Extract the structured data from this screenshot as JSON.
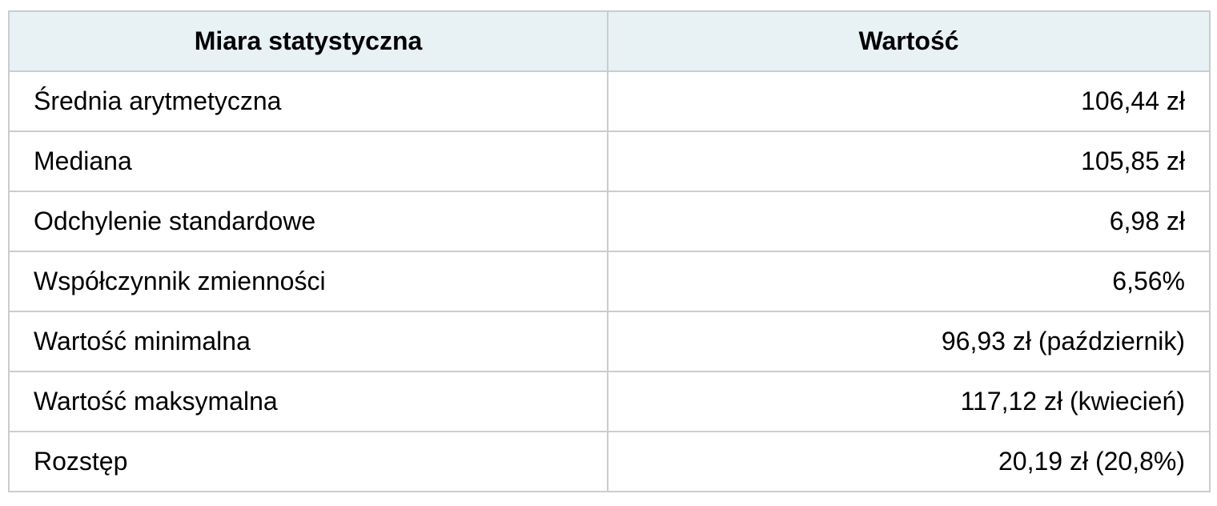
{
  "table": {
    "headers": [
      "Miara statystyczna",
      "Wartość"
    ],
    "rows": [
      {
        "label": "Średnia arytmetyczna",
        "value": "106,44 zł"
      },
      {
        "label": "Mediana",
        "value": "105,85 zł"
      },
      {
        "label": "Odchylenie standardowe",
        "value": "6,98 zł"
      },
      {
        "label": "Współczynnik zmienności",
        "value": "6,56%"
      },
      {
        "label": "Wartość minimalna",
        "value": "96,93 zł (październik)"
      },
      {
        "label": "Wartość maksymalna",
        "value": "117,12 zł (kwiecień)"
      },
      {
        "label": "Rozstęp",
        "value": "20,19 zł (20,8%)"
      }
    ]
  },
  "colors": {
    "header_bg": "#e8f1f4",
    "border": "#c9cdd0",
    "text": "#000000",
    "page_bg": "#ffffff"
  }
}
